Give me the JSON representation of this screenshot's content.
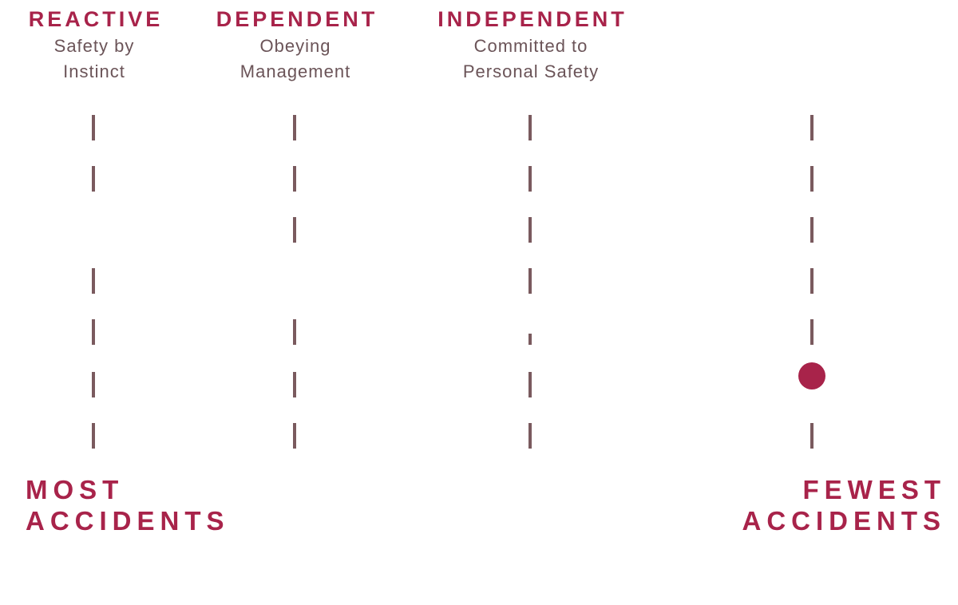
{
  "stages": [
    {
      "title": "REACTIVE",
      "subtitle": [
        "Safety by",
        "Instinct"
      ]
    },
    {
      "title": "DEPENDENT",
      "subtitle": [
        "Obeying",
        "Management"
      ]
    },
    {
      "title": "INDEPENDENT",
      "subtitle": [
        "Committed to",
        "Personal Safety"
      ]
    }
  ],
  "left_label": [
    "MOST",
    "ACCIDENTS"
  ],
  "right_label": [
    "FEWEST",
    "ACCIDENTS"
  ]
}
